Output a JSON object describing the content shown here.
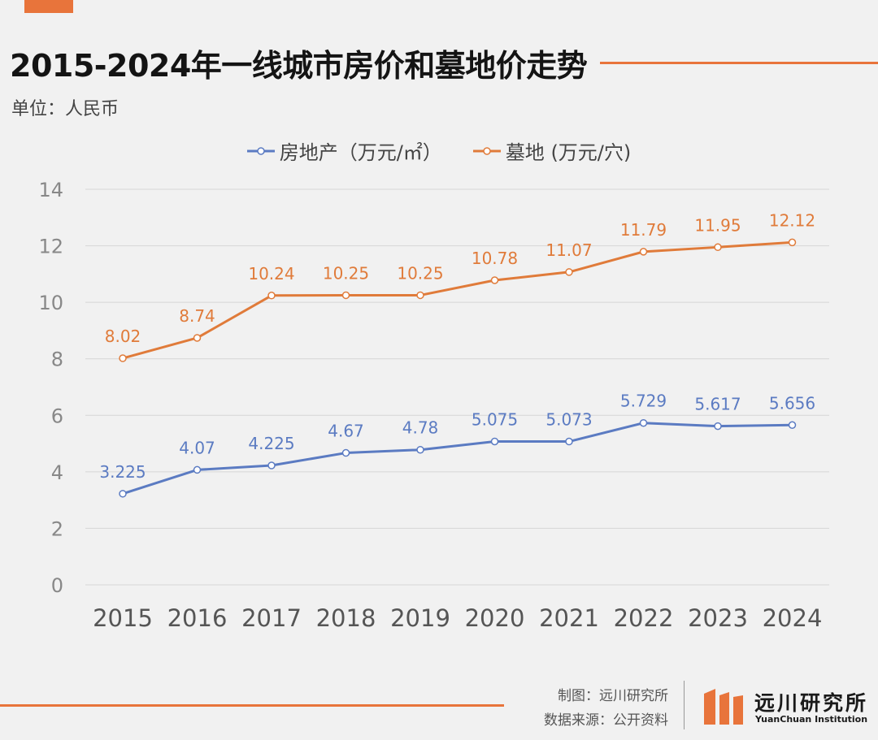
{
  "header": {
    "title": "2015-2024年一线城市房价和墓地价走势",
    "unit_label": "单位：人民币",
    "accent_color": "#e8743b"
  },
  "chart_data": {
    "type": "line",
    "title": "2015-2024年一线城市房价和墓地价走势",
    "x": [
      "2015",
      "2016",
      "2017",
      "2018",
      "2019",
      "2020",
      "2021",
      "2022",
      "2023",
      "2024"
    ],
    "ylim": [
      0,
      14
    ],
    "yticks": [
      "0",
      "2",
      "4",
      "6",
      "8",
      "10",
      "12",
      "14"
    ],
    "grid": true,
    "legend_position": "top-center",
    "series": [
      {
        "name": "房地产（万元/㎡）",
        "color": "#5b7bc2",
        "values": [
          3.225,
          4.07,
          4.225,
          4.67,
          4.78,
          5.075,
          5.073,
          5.729,
          5.617,
          5.656
        ],
        "labels": [
          "3.225",
          "4.07",
          "4.225",
          "4.67",
          "4.78",
          "5.075",
          "5.073",
          "5.729",
          "5.617",
          "5.656"
        ]
      },
      {
        "name": "墓地 (万元/穴)",
        "color": "#e07b3a",
        "values": [
          8.02,
          8.74,
          10.24,
          10.25,
          10.25,
          10.78,
          11.07,
          11.79,
          11.95,
          12.12
        ],
        "labels": [
          "8.02",
          "8.74",
          "10.24",
          "10.25",
          "10.25",
          "10.78",
          "11.07",
          "11.79",
          "11.95",
          "12.12"
        ]
      }
    ]
  },
  "footer": {
    "made_by": "制图：远川研究所",
    "source": "数据来源：公开资料",
    "logo_name": "远川研究所",
    "logo_en": "YuanChuan Institution"
  }
}
